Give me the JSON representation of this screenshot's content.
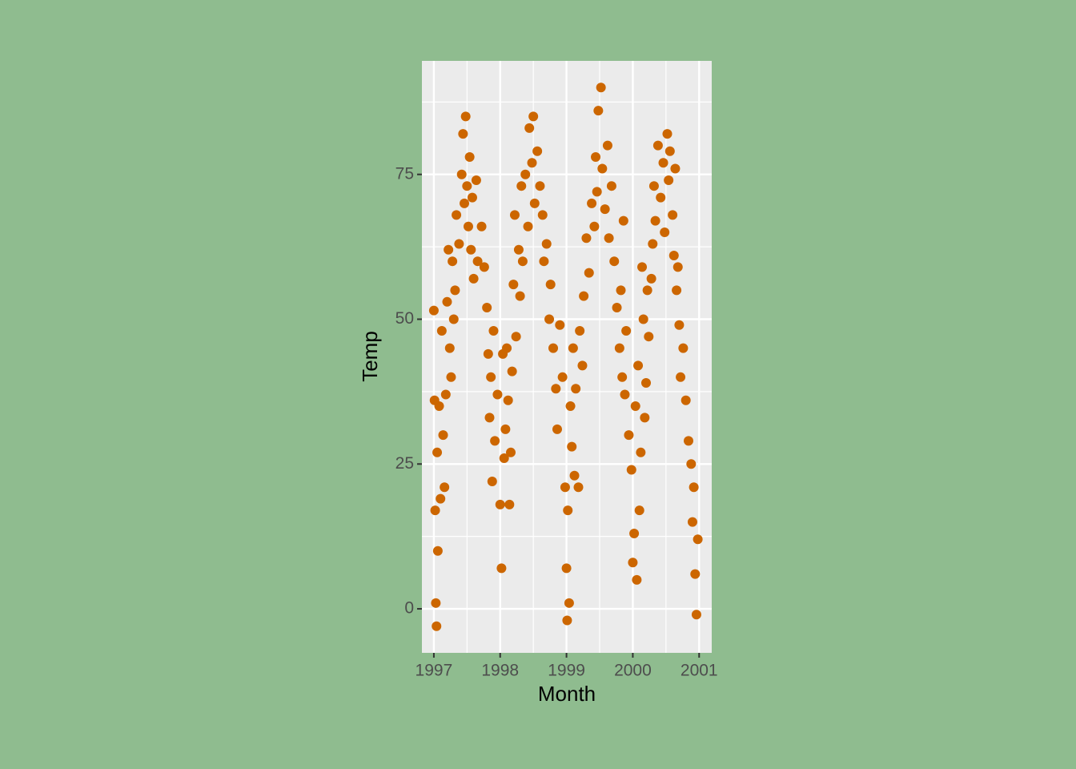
{
  "chart_data": {
    "type": "scatter",
    "x_label": "Month",
    "y_label": "Temp",
    "color": "#cc6600",
    "grid": true,
    "xlim": [
      1996.82,
      2001.19
    ],
    "ylim": [
      -7.6,
      94.6
    ],
    "xticks": [
      1997,
      1998,
      1999,
      2000,
      2001
    ],
    "yticks": [
      0,
      25,
      50,
      75
    ],
    "x": [
      1997.0,
      1997.01,
      1997.02,
      1997.03,
      1997.04,
      1997.05,
      1997.06,
      1997.08,
      1997.1,
      1997.12,
      1997.14,
      1997.16,
      1997.18,
      1997.2,
      1997.22,
      1997.24,
      1997.26,
      1997.28,
      1997.3,
      1997.32,
      1997.34,
      1997.38,
      1997.42,
      1997.44,
      1997.46,
      1997.48,
      1997.5,
      1997.52,
      1997.54,
      1997.56,
      1997.58,
      1997.6,
      1997.64,
      1997.66,
      1997.72,
      1997.76,
      1997.8,
      1997.82,
      1997.84,
      1997.86,
      1997.88,
      1997.9,
      1997.92,
      1997.96,
      1998.0,
      1998.02,
      1998.04,
      1998.06,
      1998.08,
      1998.1,
      1998.12,
      1998.14,
      1998.16,
      1998.18,
      1998.2,
      1998.22,
      1998.24,
      1998.28,
      1998.3,
      1998.32,
      1998.34,
      1998.38,
      1998.42,
      1998.44,
      1998.48,
      1998.5,
      1998.52,
      1998.56,
      1998.6,
      1998.64,
      1998.66,
      1998.7,
      1998.74,
      1998.76,
      1998.8,
      1998.84,
      1998.86,
      1998.9,
      1998.94,
      1998.98,
      1999.0,
      1999.01,
      1999.02,
      1999.04,
      1999.06,
      1999.08,
      1999.1,
      1999.12,
      1999.14,
      1999.18,
      1999.2,
      1999.24,
      1999.26,
      1999.3,
      1999.34,
      1999.38,
      1999.42,
      1999.44,
      1999.46,
      1999.48,
      1999.52,
      1999.54,
      1999.58,
      1999.62,
      1999.64,
      1999.68,
      1999.72,
      1999.76,
      1999.8,
      1999.82,
      1999.84,
      1999.86,
      1999.88,
      1999.9,
      1999.94,
      1999.98,
      2000.0,
      2000.02,
      2000.04,
      2000.06,
      2000.08,
      2000.1,
      2000.12,
      2000.14,
      2000.16,
      2000.18,
      2000.2,
      2000.22,
      2000.24,
      2000.28,
      2000.3,
      2000.32,
      2000.34,
      2000.38,
      2000.42,
      2000.46,
      2000.48,
      2000.52,
      2000.54,
      2000.56,
      2000.6,
      2000.62,
      2000.64,
      2000.66,
      2000.68,
      2000.7,
      2000.72,
      2000.76,
      2000.8,
      2000.84,
      2000.88,
      2000.9,
      2000.92,
      2000.94,
      2000.96,
      2000.98
    ],
    "values": [
      51.5,
      36,
      17,
      1,
      -3,
      27,
      10,
      35,
      19,
      48,
      30,
      21,
      37,
      53,
      62,
      45,
      40,
      60,
      50,
      55,
      68,
      63,
      75,
      82,
      70,
      85,
      73,
      66,
      78,
      62,
      71,
      57,
      74,
      60,
      66,
      59,
      52,
      44,
      33,
      40,
      22,
      48,
      29,
      37,
      18,
      7,
      44,
      26,
      31,
      45,
      36,
      18,
      27,
      41,
      56,
      68,
      47,
      62,
      54,
      73,
      60,
      75,
      66,
      83,
      77,
      85,
      70,
      79,
      73,
      68,
      60,
      63,
      50,
      56,
      45,
      38,
      31,
      49,
      40,
      21,
      7,
      -2,
      17,
      1,
      35,
      28,
      45,
      23,
      38,
      21,
      48,
      42,
      54,
      64,
      58,
      70,
      66,
      78,
      72,
      86,
      90,
      76,
      69,
      80,
      64,
      73,
      60,
      52,
      45,
      55,
      40,
      67,
      37,
      48,
      30,
      24,
      8,
      13,
      35,
      5,
      42,
      17,
      27,
      59,
      50,
      33,
      39,
      55,
      47,
      57,
      63,
      73,
      67,
      80,
      71,
      77,
      65,
      82,
      74,
      79,
      68,
      61,
      76,
      55,
      59,
      49,
      40,
      45,
      36,
      29,
      25,
      15,
      21,
      6,
      -1,
      12
    ]
  }
}
